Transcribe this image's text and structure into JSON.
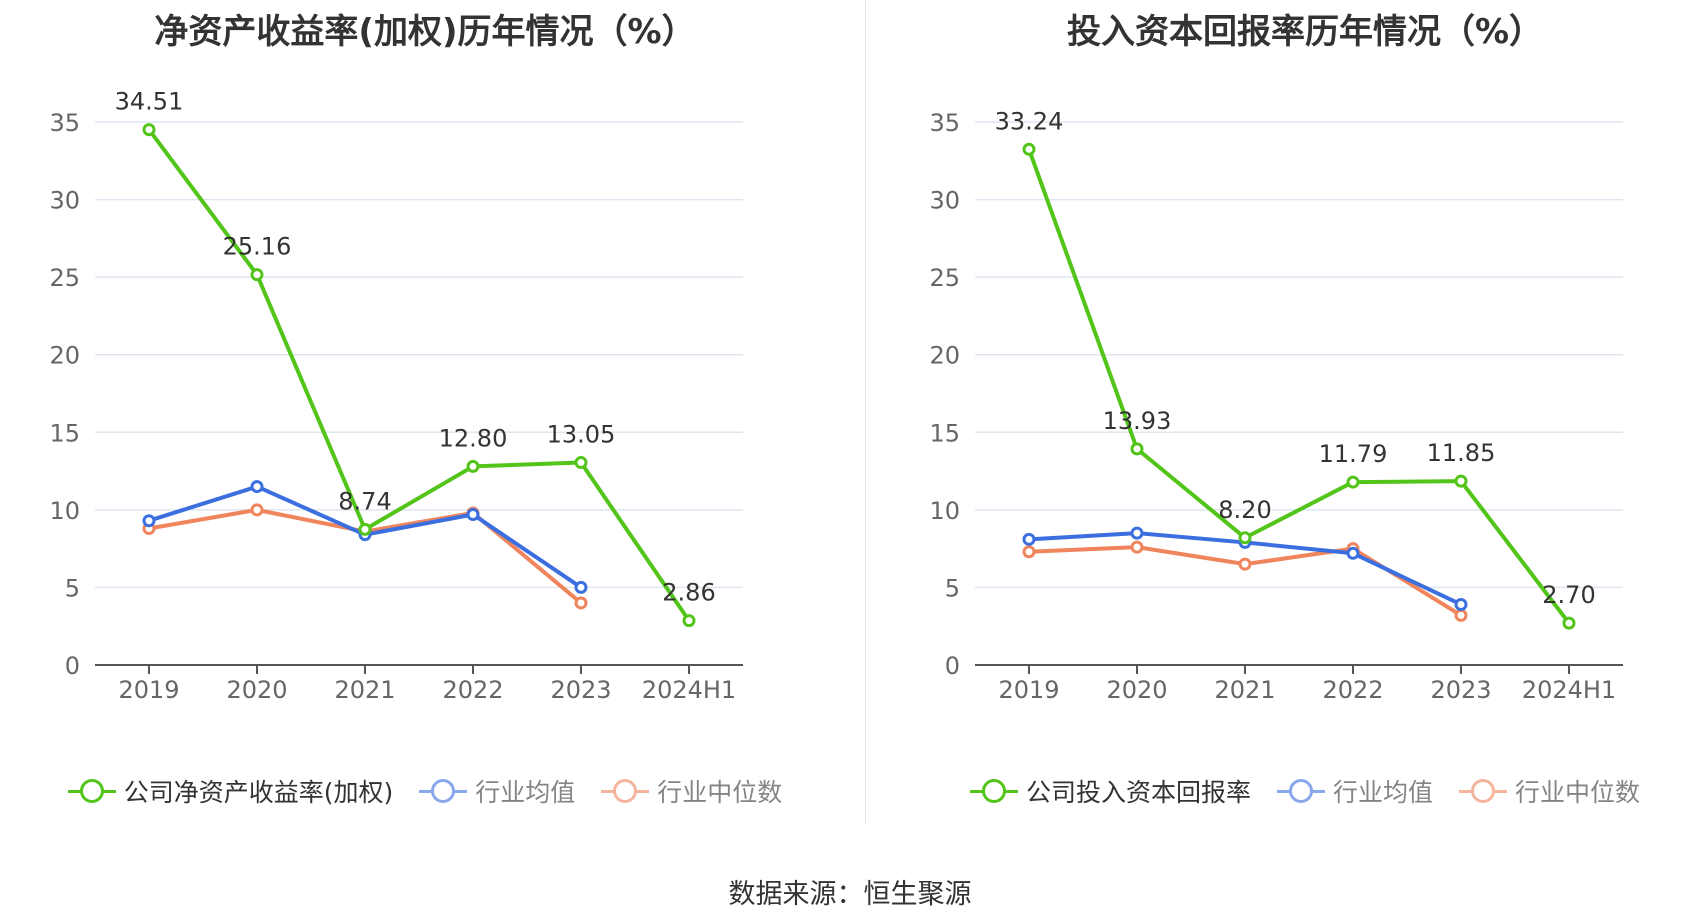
{
  "colors": {
    "company": "#52c41a",
    "avg": "#3b6fe0",
    "median": "#f0845c",
    "grid": "#dfe6f0",
    "axis": "#555555"
  },
  "source": "数据来源：恒生聚源",
  "chart_data": [
    {
      "type": "line",
      "title": "净资产收益率(加权)历年情况（%）",
      "categories": [
        "2019",
        "2020",
        "2021",
        "2022",
        "2023",
        "2024H1"
      ],
      "ylim": [
        0,
        35
      ],
      "yticks": [
        0,
        5,
        10,
        15,
        20,
        25,
        30,
        35
      ],
      "grid": true,
      "legend_position": "bottom",
      "series": [
        {
          "name": "公司净资产收益率(加权)",
          "color_key": "company",
          "values": [
            34.51,
            25.16,
            8.74,
            12.8,
            13.05,
            2.86
          ],
          "labels": [
            "34.51",
            "25.16",
            "8.74",
            "12.80",
            "13.05",
            "2.86"
          ]
        },
        {
          "name": "行业均值",
          "color_key": "avg",
          "values": [
            9.3,
            11.5,
            8.4,
            9.7,
            5.0,
            null
          ]
        },
        {
          "name": "行业中位数",
          "color_key": "median",
          "values": [
            8.8,
            10.0,
            8.6,
            9.8,
            4.0,
            null
          ]
        }
      ]
    },
    {
      "type": "line",
      "title": "投入资本回报率历年情况（%）",
      "categories": [
        "2019",
        "2020",
        "2021",
        "2022",
        "2023",
        "2024H1"
      ],
      "ylim": [
        0,
        35
      ],
      "yticks": [
        0,
        5,
        10,
        15,
        20,
        25,
        30,
        35
      ],
      "grid": true,
      "legend_position": "bottom",
      "series": [
        {
          "name": "公司投入资本回报率",
          "color_key": "company",
          "values": [
            33.24,
            13.93,
            8.2,
            11.79,
            11.85,
            2.7
          ],
          "labels": [
            "33.24",
            "13.93",
            "8.20",
            "11.79",
            "11.85",
            "2.70"
          ]
        },
        {
          "name": "行业均值",
          "color_key": "avg",
          "values": [
            8.1,
            8.5,
            7.9,
            7.2,
            3.9,
            null
          ]
        },
        {
          "name": "行业中位数",
          "color_key": "median",
          "values": [
            7.3,
            7.6,
            6.5,
            7.5,
            3.2,
            null
          ]
        }
      ]
    }
  ]
}
